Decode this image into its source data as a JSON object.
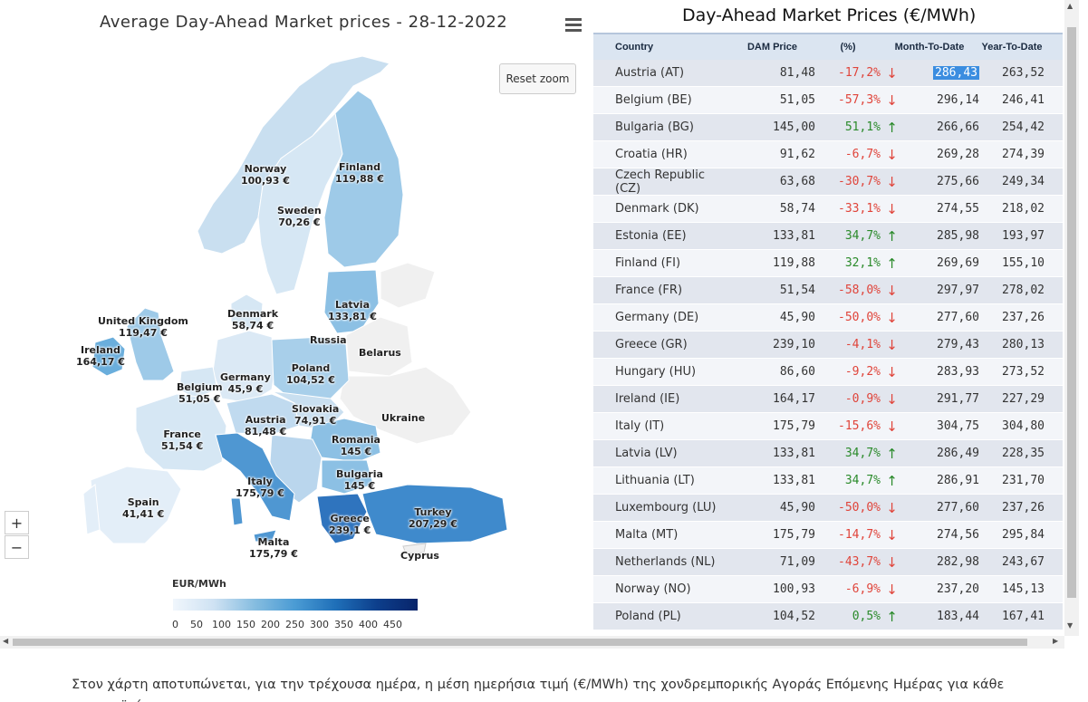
{
  "map": {
    "title": "Average Day-Ahead Market prices - 28-12-2022",
    "reset_zoom": "Reset zoom",
    "zoom_in": "+",
    "zoom_out": "−",
    "legend_title": "EUR/MWh",
    "legend_ticks": [
      "0",
      "50",
      "100",
      "150",
      "200",
      "250",
      "300",
      "350",
      "400",
      "450"
    ],
    "labels": [
      {
        "id": "norway",
        "name": "Norway",
        "value": "100,93 €"
      },
      {
        "id": "finland",
        "name": "Finland",
        "value": "119,88 €"
      },
      {
        "id": "sweden",
        "name": "Sweden",
        "value": "70,26 €"
      },
      {
        "id": "uk",
        "name": "United Kingdom",
        "value": "119,47 €"
      },
      {
        "id": "denmark",
        "name": "Denmark",
        "value": "58,74 €"
      },
      {
        "id": "latvia",
        "name": "Latvia",
        "value": "133,81 €"
      },
      {
        "id": "russia",
        "name": "Russia",
        "value": ""
      },
      {
        "id": "belarus",
        "name": "Belarus",
        "value": ""
      },
      {
        "id": "ireland",
        "name": "Ireland",
        "value": "164,17 €"
      },
      {
        "id": "poland",
        "name": "Poland",
        "value": "104,52 €"
      },
      {
        "id": "belgium",
        "name": "Belgium",
        "value": "51,05 €"
      },
      {
        "id": "germany",
        "name": "Germany",
        "value": "45,9 €"
      },
      {
        "id": "slovakia",
        "name": "Slovakia",
        "value": "74,91 €"
      },
      {
        "id": "ukraine",
        "name": "Ukraine",
        "value": ""
      },
      {
        "id": "austria",
        "name": "Austria",
        "value": "81,48 €"
      },
      {
        "id": "france",
        "name": "France",
        "value": "51,54 €"
      },
      {
        "id": "romania",
        "name": "Romania",
        "value": "145 €"
      },
      {
        "id": "bulgaria",
        "name": "Bulgaria",
        "value": "145 €"
      },
      {
        "id": "italy",
        "name": "Italy",
        "value": "175,79 €"
      },
      {
        "id": "spain",
        "name": "Spain",
        "value": "41,41 €"
      },
      {
        "id": "greece",
        "name": "Greece",
        "value": "239,1 €"
      },
      {
        "id": "turkey",
        "name": "Turkey",
        "value": "207,29 €"
      },
      {
        "id": "malta",
        "name": "Malta",
        "value": "175,79 €"
      },
      {
        "id": "cyprus",
        "name": "Cyprus",
        "value": ""
      }
    ]
  },
  "table": {
    "title": "Day-Ahead Market Prices (€/MWh)",
    "headers": {
      "country": "Country",
      "dam": "DAM Price",
      "pct": "(%)",
      "mtd": "Month-To-Date",
      "ytd": "Year-To-Date"
    },
    "rows": [
      {
        "country": "Austria (AT)",
        "dam": "81,48",
        "pct": "-17,2%",
        "dir": "down",
        "mtd": "286,43",
        "ytd": "263,52"
      },
      {
        "country": "Belgium (BE)",
        "dam": "51,05",
        "pct": "-57,3%",
        "dir": "down",
        "mtd": "296,14",
        "ytd": "246,41"
      },
      {
        "country": "Bulgaria (BG)",
        "dam": "145,00",
        "pct": "51,1%",
        "dir": "up",
        "mtd": "266,66",
        "ytd": "254,42"
      },
      {
        "country": "Croatia (HR)",
        "dam": "91,62",
        "pct": "-6,7%",
        "dir": "down",
        "mtd": "269,28",
        "ytd": "274,39"
      },
      {
        "country": "Czech Republic (CZ)",
        "dam": "63,68",
        "pct": "-30,7%",
        "dir": "down",
        "mtd": "275,66",
        "ytd": "249,34"
      },
      {
        "country": "Denmark (DK)",
        "dam": "58,74",
        "pct": "-33,1%",
        "dir": "down",
        "mtd": "274,55",
        "ytd": "218,02"
      },
      {
        "country": "Estonia (EE)",
        "dam": "133,81",
        "pct": "34,7%",
        "dir": "up",
        "mtd": "285,98",
        "ytd": "193,97"
      },
      {
        "country": "Finland (FI)",
        "dam": "119,88",
        "pct": "32,1%",
        "dir": "up",
        "mtd": "269,69",
        "ytd": "155,10"
      },
      {
        "country": "France (FR)",
        "dam": "51,54",
        "pct": "-58,0%",
        "dir": "down",
        "mtd": "297,97",
        "ytd": "278,02"
      },
      {
        "country": "Germany (DE)",
        "dam": "45,90",
        "pct": "-50,0%",
        "dir": "down",
        "mtd": "277,60",
        "ytd": "237,26"
      },
      {
        "country": "Greece (GR)",
        "dam": "239,10",
        "pct": "-4,1%",
        "dir": "down",
        "mtd": "279,43",
        "ytd": "280,13"
      },
      {
        "country": "Hungary (HU)",
        "dam": "86,60",
        "pct": "-9,2%",
        "dir": "down",
        "mtd": "283,93",
        "ytd": "273,52"
      },
      {
        "country": "Ireland (IE)",
        "dam": "164,17",
        "pct": "-0,9%",
        "dir": "down",
        "mtd": "291,77",
        "ytd": "227,29"
      },
      {
        "country": "Italy (IT)",
        "dam": "175,79",
        "pct": "-15,6%",
        "dir": "down",
        "mtd": "304,75",
        "ytd": "304,80"
      },
      {
        "country": "Latvia (LV)",
        "dam": "133,81",
        "pct": "34,7%",
        "dir": "up",
        "mtd": "286,49",
        "ytd": "228,35"
      },
      {
        "country": "Lithuania (LT)",
        "dam": "133,81",
        "pct": "34,7%",
        "dir": "up",
        "mtd": "286,91",
        "ytd": "231,70"
      },
      {
        "country": "Luxembourg (LU)",
        "dam": "45,90",
        "pct": "-50,0%",
        "dir": "down",
        "mtd": "277,60",
        "ytd": "237,26"
      },
      {
        "country": "Malta (MT)",
        "dam": "175,79",
        "pct": "-14,7%",
        "dir": "down",
        "mtd": "274,56",
        "ytd": "295,84"
      },
      {
        "country": "Netherlands (NL)",
        "dam": "71,09",
        "pct": "-43,7%",
        "dir": "down",
        "mtd": "282,98",
        "ytd": "243,67"
      },
      {
        "country": "Norway (NO)",
        "dam": "100,93",
        "pct": "-6,9%",
        "dir": "down",
        "mtd": "237,20",
        "ytd": "145,13"
      },
      {
        "country": "Poland (PL)",
        "dam": "104,52",
        "pct": "0,5%",
        "dir": "up",
        "mtd": "183,44",
        "ytd": "167,41"
      }
    ]
  },
  "colors": {
    "up": "#2a8a2a",
    "down": "#e0443a",
    "highlight": "#3b8de0"
  },
  "caption": "Στον χάρτη αποτυπώνεται, για την τρέχουσα ημέρα, η μέση ημερήσια τιμή (€/MWh) της χονδρεμπορικής Αγοράς Επόμενης Ημέρας για κάθε ευρωπαϊκό"
}
